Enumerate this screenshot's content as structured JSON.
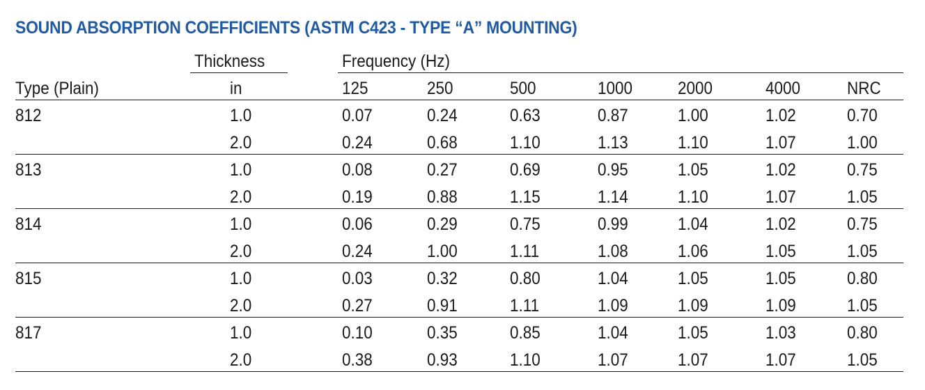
{
  "title": "SOUND ABSORPTION COEFFICIENTS (ASTM C423 - TYPE “A” MOUNTING)",
  "headers": {
    "thickness_group": "Thickness",
    "frequency_group": "Frequency (Hz)",
    "type": "Type (Plain)",
    "thickness_unit": "in",
    "columns": [
      "125",
      "250",
      "500",
      "1000",
      "2000",
      "4000",
      "NRC"
    ]
  },
  "groups": [
    {
      "type": "812",
      "rows": [
        {
          "thickness": "1.0",
          "values": [
            "0.07",
            "0.24",
            "0.63",
            "0.87",
            "1.00",
            "1.02",
            "0.70"
          ]
        },
        {
          "thickness": "2.0",
          "values": [
            "0.24",
            "0.68",
            "1.10",
            "1.13",
            "1.10",
            "1.07",
            "1.00"
          ]
        }
      ]
    },
    {
      "type": "813",
      "rows": [
        {
          "thickness": "1.0",
          "values": [
            "0.08",
            "0.27",
            "0.69",
            "0.95",
            "1.05",
            "1.02",
            "0.75"
          ]
        },
        {
          "thickness": "2.0",
          "values": [
            "0.19",
            "0.88",
            "1.15",
            "1.14",
            "1.10",
            "1.07",
            "1.05"
          ]
        }
      ]
    },
    {
      "type": "814",
      "rows": [
        {
          "thickness": "1.0",
          "values": [
            "0.06",
            "0.29",
            "0.75",
            "0.99",
            "1.04",
            "1.02",
            "0.75"
          ]
        },
        {
          "thickness": "2.0",
          "values": [
            "0.24",
            "1.00",
            "1.11",
            "1.08",
            "1.06",
            "1.05",
            "1.05"
          ]
        }
      ]
    },
    {
      "type": "815",
      "rows": [
        {
          "thickness": "1.0",
          "values": [
            "0.03",
            "0.32",
            "0.80",
            "1.04",
            "1.05",
            "1.05",
            "0.80"
          ]
        },
        {
          "thickness": "2.0",
          "values": [
            "0.27",
            "0.91",
            "1.11",
            "1.09",
            "1.09",
            "1.09",
            "1.05"
          ]
        }
      ]
    },
    {
      "type": "817",
      "rows": [
        {
          "thickness": "1.0",
          "values": [
            "0.10",
            "0.35",
            "0.85",
            "1.04",
            "1.05",
            "1.03",
            "0.80"
          ]
        },
        {
          "thickness": "2.0",
          "values": [
            "0.38",
            "0.93",
            "1.10",
            "1.07",
            "1.07",
            "1.07",
            "1.05"
          ]
        }
      ]
    }
  ]
}
